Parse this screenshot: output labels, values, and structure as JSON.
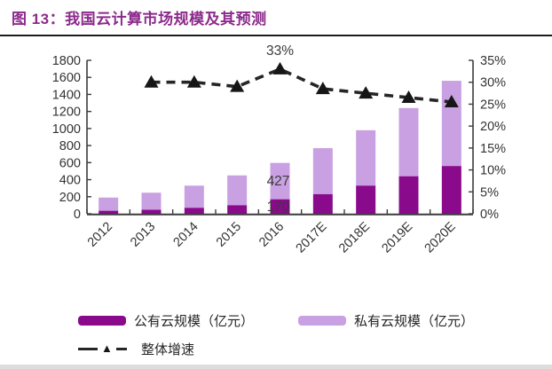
{
  "header": {
    "title": "图 13：我国云计算市场规模及其预测"
  },
  "colors": {
    "title": "#8B2A8B",
    "rule": "#1c1c1c",
    "public_bar": "#8A0A8C",
    "private_bar": "#C9A0E2",
    "growth_line": "#262626",
    "marker": "#161616",
    "axis": "#3c3c3c",
    "axis_text": "#333333",
    "annotation_text": "#3a3a3a",
    "legend_text": "#262626",
    "bottom_strip": "#d7d7d7"
  },
  "chart_data": {
    "type": "bar",
    "subtype": "stacked-bars-with-right-axis-line",
    "categories": [
      "2012",
      "2013",
      "2014",
      "2015",
      "2016",
      "2017E",
      "2018E",
      "2019E",
      "2020E"
    ],
    "series": [
      {
        "name": "公有云规模（亿元）",
        "kind": "bar",
        "stack": "market",
        "axis": "left",
        "values": [
          35,
          47,
          70,
          100,
          170,
          230,
          330,
          440,
          560
        ]
      },
      {
        "name": "私有云规模（亿元）",
        "kind": "bar",
        "stack": "market",
        "axis": "left",
        "values": [
          155,
          200,
          260,
          350,
          427,
          540,
          650,
          800,
          1000
        ]
      },
      {
        "name": "整体增速",
        "kind": "line",
        "axis": "right",
        "values": [
          null,
          30,
          30,
          29,
          33,
          28.5,
          27.5,
          26.5,
          25.5
        ]
      }
    ],
    "left_axis": {
      "min": 0,
      "max": 1800,
      "step": 200,
      "tick_labels": [
        "1800",
        "1600",
        "1400",
        "1200",
        "1000",
        "800",
        "600",
        "400",
        "200",
        "0"
      ]
    },
    "right_axis": {
      "min": 0,
      "max": 35,
      "step": 5,
      "tick_labels": [
        "35%",
        "30%",
        "25%",
        "20%",
        "15%",
        "10%",
        "5%",
        "0%"
      ]
    },
    "annotations": [
      {
        "text": "33%",
        "attach": "line",
        "category_index": 4
      },
      {
        "text": "427",
        "attach": "private-segment",
        "category_index": 4
      },
      {
        "text": "170",
        "attach": "public-segment",
        "category_index": 4
      }
    ],
    "legend": [
      {
        "label": "公有云规模（亿元）",
        "marker": "bar",
        "color_key": "public_bar"
      },
      {
        "label": "私有云规模（亿元）",
        "marker": "bar",
        "color_key": "private_bar"
      },
      {
        "label": "整体增速",
        "marker": "dashed-line-triangle",
        "color_key": "growth_line"
      }
    ],
    "grid": false,
    "legend_position": "bottom"
  }
}
